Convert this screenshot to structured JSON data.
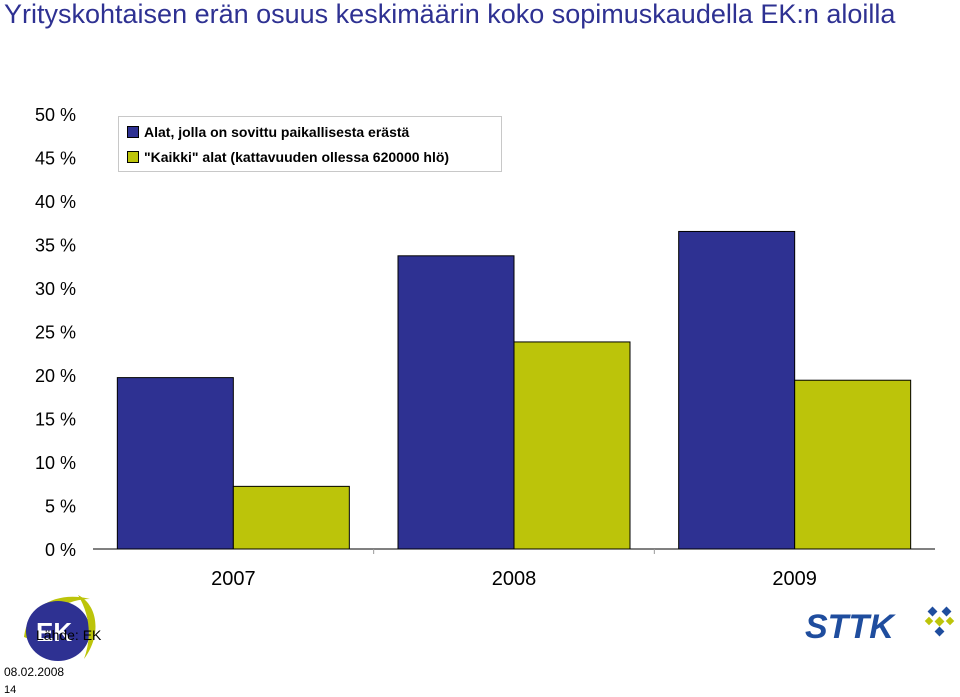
{
  "page": {
    "title": "Yrityskohtaisen erän osuus keskimäärin koko sopimuskaudella EK:n aloilla",
    "source": "Lähde: EK",
    "date": "08.02.2008",
    "page_number": "14",
    "logos": {
      "left": {
        "text": "EK",
        "icon": "ek-logo-icon",
        "colors": [
          "#2e3192",
          "#bcc40a"
        ]
      },
      "right": {
        "text": "STTK",
        "icon": "sttk-logo-icon",
        "color": "#1f4d9e",
        "accent": "#bcc40a"
      }
    }
  },
  "chart_data": {
    "type": "bar",
    "categories": [
      "2007",
      "2008",
      "2009"
    ],
    "series": [
      {
        "name": "Alat, jolla on sovittu paikallisesta erästä",
        "values": [
          19.7,
          33.7,
          36.5
        ],
        "color": "#2e3192"
      },
      {
        "name": "\"Kaikki\" alat (kattavuuden ollessa 620000 hlö)",
        "values": [
          7.2,
          23.8,
          19.4
        ],
        "color": "#bcc40a"
      }
    ],
    "y_ticks": [
      "0 %",
      "5 %",
      "10 %",
      "15 %",
      "20 %",
      "25 %",
      "30 %",
      "35 %",
      "40 %",
      "45 %",
      "50 %"
    ],
    "ylim": [
      0,
      50
    ],
    "grid": false,
    "legend_position": "top-left",
    "title": "",
    "xlabel": "",
    "ylabel": ""
  }
}
